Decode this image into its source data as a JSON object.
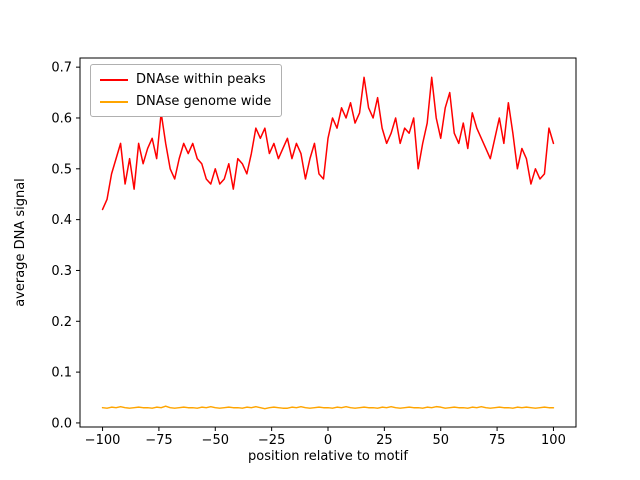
{
  "figure": {
    "background": "#ffffff"
  },
  "chart_data": {
    "type": "line",
    "title": "",
    "xlabel": "position relative to motif",
    "ylabel": "average DNA signal",
    "xlim": [
      -110,
      110
    ],
    "ylim": [
      -0.008,
      0.718
    ],
    "xticks": [
      -100,
      -75,
      -50,
      -25,
      0,
      25,
      50,
      75,
      100
    ],
    "yticks": [
      0.0,
      0.1,
      0.2,
      0.3,
      0.4,
      0.5,
      0.6,
      0.7
    ],
    "grid": false,
    "legend_position": "upper-left",
    "x": [
      -100,
      -98,
      -96,
      -94,
      -92,
      -90,
      -88,
      -86,
      -84,
      -82,
      -80,
      -78,
      -76,
      -74,
      -72,
      -70,
      -68,
      -66,
      -64,
      -62,
      -60,
      -58,
      -56,
      -54,
      -52,
      -50,
      -48,
      -46,
      -44,
      -42,
      -40,
      -38,
      -36,
      -34,
      -32,
      -30,
      -28,
      -26,
      -24,
      -22,
      -20,
      -18,
      -16,
      -14,
      -12,
      -10,
      -8,
      -6,
      -4,
      -2,
      0,
      2,
      4,
      6,
      8,
      10,
      12,
      14,
      16,
      18,
      20,
      22,
      24,
      26,
      28,
      30,
      32,
      34,
      36,
      38,
      40,
      42,
      44,
      46,
      48,
      50,
      52,
      54,
      56,
      58,
      60,
      62,
      64,
      66,
      68,
      70,
      72,
      74,
      76,
      78,
      80,
      82,
      84,
      86,
      88,
      90,
      92,
      94,
      96,
      98,
      100
    ],
    "series": [
      {
        "name": "DNAse within peaks",
        "color": "#ff0000",
        "values": [
          0.42,
          0.44,
          0.49,
          0.52,
          0.55,
          0.47,
          0.52,
          0.46,
          0.55,
          0.51,
          0.54,
          0.56,
          0.52,
          0.61,
          0.55,
          0.5,
          0.48,
          0.52,
          0.55,
          0.53,
          0.55,
          0.52,
          0.51,
          0.48,
          0.47,
          0.5,
          0.47,
          0.48,
          0.51,
          0.46,
          0.52,
          0.51,
          0.49,
          0.53,
          0.58,
          0.56,
          0.58,
          0.53,
          0.55,
          0.52,
          0.54,
          0.56,
          0.52,
          0.55,
          0.53,
          0.48,
          0.52,
          0.55,
          0.49,
          0.48,
          0.56,
          0.6,
          0.58,
          0.62,
          0.6,
          0.63,
          0.59,
          0.61,
          0.68,
          0.62,
          0.6,
          0.64,
          0.58,
          0.55,
          0.57,
          0.6,
          0.55,
          0.58,
          0.57,
          0.6,
          0.5,
          0.55,
          0.59,
          0.68,
          0.6,
          0.56,
          0.62,
          0.65,
          0.57,
          0.55,
          0.59,
          0.54,
          0.61,
          0.58,
          0.56,
          0.54,
          0.52,
          0.56,
          0.6,
          0.55,
          0.63,
          0.57,
          0.5,
          0.54,
          0.52,
          0.47,
          0.5,
          0.48,
          0.49,
          0.58,
          0.55
        ]
      },
      {
        "name": "DNAse genome wide",
        "color": "#ffa500",
        "values": [
          0.03,
          0.029,
          0.031,
          0.03,
          0.032,
          0.03,
          0.029,
          0.03,
          0.031,
          0.03,
          0.03,
          0.029,
          0.031,
          0.03,
          0.033,
          0.03,
          0.029,
          0.03,
          0.031,
          0.03,
          0.03,
          0.029,
          0.031,
          0.03,
          0.032,
          0.03,
          0.029,
          0.03,
          0.031,
          0.03,
          0.03,
          0.029,
          0.031,
          0.03,
          0.032,
          0.03,
          0.028,
          0.03,
          0.031,
          0.03,
          0.029,
          0.029,
          0.031,
          0.03,
          0.032,
          0.03,
          0.029,
          0.03,
          0.031,
          0.03,
          0.03,
          0.029,
          0.031,
          0.03,
          0.032,
          0.03,
          0.029,
          0.03,
          0.031,
          0.03,
          0.03,
          0.029,
          0.031,
          0.03,
          0.032,
          0.03,
          0.029,
          0.03,
          0.031,
          0.03,
          0.03,
          0.029,
          0.031,
          0.03,
          0.032,
          0.031,
          0.029,
          0.03,
          0.031,
          0.03,
          0.03,
          0.029,
          0.031,
          0.03,
          0.032,
          0.03,
          0.029,
          0.03,
          0.031,
          0.03,
          0.03,
          0.029,
          0.031,
          0.03,
          0.031,
          0.03,
          0.029,
          0.03,
          0.031,
          0.03,
          0.03
        ]
      }
    ]
  }
}
